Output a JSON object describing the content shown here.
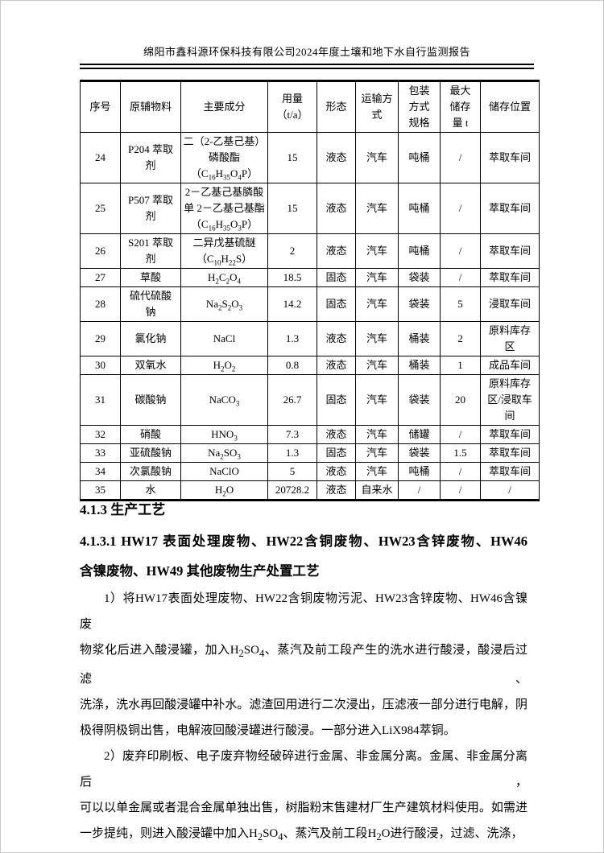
{
  "page": {
    "header_title": "绵阳市鑫科源环保科技有限公司2024年度土壤和地下水自行监测报告"
  },
  "table": {
    "headers": [
      "序号",
      "原辅物料",
      "主要成分",
      "用量\n（t/a）",
      "形态",
      "运输方\n式",
      "包装\n方式\n规格",
      "最大\n储存\n量 t",
      "储存位置"
    ],
    "rows": [
      {
        "no": "24",
        "material": "P204 萃取\n剂",
        "component": "二（2-乙基己基）\n磷酸酯\n（C~16~H~35~O~4~P）",
        "usage": "15",
        "form": "液态",
        "transport": "汽车",
        "packaging": "吨桶",
        "max_storage": "/",
        "location": "萃取车间"
      },
      {
        "no": "25",
        "material": "P507 萃取\n剂",
        "component": "2－乙基己基膦酸\n单 2－乙基己基酯\n（C~16~H~35~O~3~P）",
        "usage": "15",
        "form": "液态",
        "transport": "汽车",
        "packaging": "吨桶",
        "max_storage": "/",
        "location": "萃取车间"
      },
      {
        "no": "26",
        "material": "S201 萃取\n剂",
        "component": "二异戊基硫醚\n（C~10~H~22~S）",
        "usage": "2",
        "form": "液态",
        "transport": "汽车",
        "packaging": "吨桶",
        "max_storage": "/",
        "location": "萃取车间"
      },
      {
        "no": "27",
        "material": "草酸",
        "component": "H~2~C~2~O~4~",
        "usage": "18.5",
        "form": "固态",
        "transport": "汽车",
        "packaging": "袋装",
        "max_storage": "/",
        "location": "萃取车间"
      },
      {
        "no": "28",
        "material": "硫代硫酸\n钠",
        "component": "Na~2~S~2~O~3~",
        "usage": "14.2",
        "form": "固态",
        "transport": "汽车",
        "packaging": "袋装",
        "max_storage": "5",
        "location": "浸取车间"
      },
      {
        "no": "29",
        "material": "氯化钠",
        "component": "NaCl",
        "usage": "1.3",
        "form": "液态",
        "transport": "汽车",
        "packaging": "桶装",
        "max_storage": "2",
        "location": "原料库存\n区"
      },
      {
        "no": "30",
        "material": "双氧水",
        "component": "H~2~O~2~",
        "usage": "0.8",
        "form": "液态",
        "transport": "汽车",
        "packaging": "桶装",
        "max_storage": "1",
        "location": "成品车间"
      },
      {
        "no": "31",
        "material": "碳酸钠",
        "component": "NaCO~3~",
        "usage": "26.7",
        "form": "固态",
        "transport": "汽车",
        "packaging": "袋装",
        "max_storage": "20",
        "location": "原料库存\n区/浸取车\n间"
      },
      {
        "no": "32",
        "material": "硝酸",
        "component": "HNO~3~",
        "usage": "7.3",
        "form": "液态",
        "transport": "汽车",
        "packaging": "储罐",
        "max_storage": "/",
        "location": "萃取车间"
      },
      {
        "no": "33",
        "material": "亚硫酸钠",
        "component": "Na~2~SO~3~",
        "usage": "1.3",
        "form": "固态",
        "transport": "汽车",
        "packaging": "袋装",
        "max_storage": "1.5",
        "location": "萃取车间"
      },
      {
        "no": "34",
        "material": "次氯酸钠",
        "component": "NaClO",
        "usage": "5",
        "form": "液态",
        "transport": "汽车",
        "packaging": "吨桶",
        "max_storage": "/",
        "location": "萃取车间"
      },
      {
        "no": "35",
        "material": "水",
        "component": "H~2~O",
        "usage": "20728.2",
        "form": "液态",
        "transport": "自来水",
        "packaging": "/",
        "max_storage": "/",
        "location": "/"
      }
    ]
  },
  "sections": {
    "heading1": "4.1.3  生产工艺",
    "heading2_lines": [
      "4.1.3.1  HW17 表面处理废物、HW22含铜废物、HW23含锌废物、HW46",
      "含镍废物、HW49 其他废物生产处置工艺"
    ],
    "paragraphs": [
      {
        "lines": [
          "1）将HW17表面处理废物、HW22含铜废物污泥、HW23含锌废物、HW46含镍废",
          "物浆化后进入酸浸罐，加入H~2~SO~4~、蒸汽及前工段产生的洗水进行酸浸，酸浸后过滤、",
          "洗涤，洗水再回酸浸罐中补水。滤渣回用进行二次浸出，压滤液一部分进行电解，阴",
          "极得阴极铜出售，电解液回酸浸罐进行酸浸。一部分进入LiX984萃铜。"
        ]
      },
      {
        "lines": [
          "2）废弃印刷板、电子废弃物经破碎进行金属、非金属分离。金属、非金属分离后，",
          "可以以单金属或者混合金属单独出售，树脂粉末售建材厂生产建筑材料使用。如需进",
          "一步提纯，则进入酸浸罐中加入H~2~SO~4~、蒸汽及前工段H~2~O进行酸浸，过滤、洗涤，洗"
        ]
      }
    ]
  }
}
